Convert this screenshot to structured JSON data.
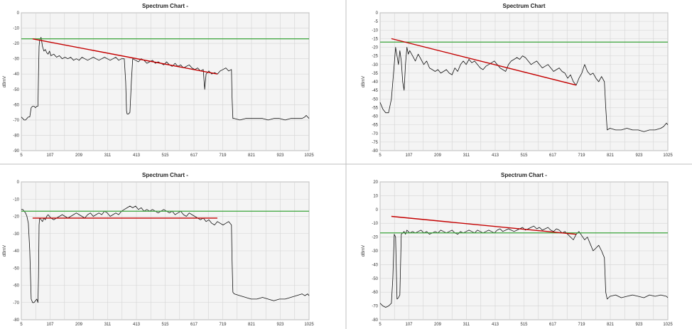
{
  "chart_data": [
    {
      "type": "line",
      "title": "Spectrum Chart -",
      "xlabel": "",
      "ylabel": "dBmV",
      "xlim": [
        5,
        1025
      ],
      "ylim": [
        -90,
        0
      ],
      "x_ticks": [
        "5",
        "107",
        "209",
        "311",
        "413",
        "515",
        "617",
        "719",
        "821",
        "923",
        "1025"
      ],
      "y_ticks": [
        "0",
        "-10",
        "-20",
        "-30",
        "-40",
        "-50",
        "-60",
        "-70",
        "-80",
        "-90"
      ],
      "reference_level": -17,
      "trend_line": [
        [
          45,
          -17
        ],
        [
          700,
          -40
        ]
      ],
      "series": [
        {
          "x": [
            5,
            10,
            15,
            20,
            25,
            30,
            35,
            40,
            45,
            50,
            55,
            60,
            64,
            66,
            68,
            70,
            75,
            80,
            85,
            90,
            95,
            100,
            105,
            110,
            120,
            130,
            140,
            150,
            160,
            170,
            180,
            190,
            200,
            210,
            220,
            230,
            240,
            250,
            260,
            270,
            280,
            290,
            300,
            310,
            320,
            330,
            340,
            350,
            360,
            370,
            375,
            378,
            380,
            385,
            390,
            395,
            400,
            410,
            420,
            430,
            440,
            450,
            460,
            470,
            480,
            490,
            500,
            510,
            520,
            530,
            540,
            550,
            560,
            570,
            580,
            590,
            600,
            610,
            620,
            630,
            640,
            650,
            655,
            660,
            670,
            680,
            690,
            700,
            710,
            720,
            730,
            740,
            750,
            752,
            755,
            760,
            780,
            800,
            820,
            840,
            860,
            880,
            900,
            920,
            940,
            960,
            980,
            1000,
            1010,
            1015,
            1020,
            1025
          ],
          "y": [
            -68,
            -69,
            -70,
            -70,
            -69,
            -68,
            -68,
            -62,
            -61,
            -61,
            -62,
            -61,
            -61,
            -40,
            -22,
            -18,
            -16,
            -22,
            -25,
            -24,
            -26,
            -27,
            -25,
            -28,
            -27,
            -29,
            -28,
            -30,
            -29,
            -30,
            -29,
            -31,
            -30,
            -31,
            -29,
            -30,
            -31,
            -30,
            -29,
            -30,
            -31,
            -30,
            -29,
            -30,
            -31,
            -30,
            -29,
            -31,
            -30,
            -30,
            -45,
            -64,
            -66,
            -66,
            -65,
            -45,
            -30,
            -31,
            -32,
            -30,
            -31,
            -33,
            -32,
            -31,
            -33,
            -32,
            -33,
            -34,
            -32,
            -34,
            -35,
            -33,
            -35,
            -34,
            -36,
            -35,
            -34,
            -36,
            -37,
            -36,
            -38,
            -37,
            -50,
            -40,
            -38,
            -40,
            -39,
            -40,
            -38,
            -37,
            -36,
            -38,
            -37,
            -55,
            -69,
            -69,
            -70,
            -69,
            -69,
            -69,
            -69,
            -70,
            -69,
            -69,
            -70,
            -69,
            -69,
            -69,
            -68,
            -67,
            -68,
            -69
          ]
        }
      ]
    },
    {
      "type": "line",
      "title": "Spectrum Chart",
      "xlabel": "",
      "ylabel": "dBmV",
      "xlim": [
        5,
        1025
      ],
      "ylim": [
        -80,
        0
      ],
      "x_ticks": [
        "5",
        "107",
        "209",
        "311",
        "413",
        "515",
        "617",
        "719",
        "821",
        "923",
        "1025"
      ],
      "y_ticks": [
        "0",
        "-5",
        "-10",
        "-15",
        "-20",
        "-25",
        "-30",
        "-35",
        "-40",
        "-45",
        "-50",
        "-55",
        "-60",
        "-65",
        "-70",
        "-75",
        "-80"
      ],
      "reference_level": -17,
      "trend_line": [
        [
          45,
          -15
        ],
        [
          700,
          -42
        ]
      ],
      "series": [
        {
          "x": [
            5,
            15,
            25,
            35,
            45,
            50,
            55,
            60,
            65,
            70,
            75,
            80,
            85,
            90,
            95,
            100,
            105,
            110,
            120,
            130,
            140,
            150,
            160,
            170,
            180,
            190,
            200,
            210,
            220,
            230,
            240,
            250,
            260,
            270,
            280,
            290,
            300,
            310,
            320,
            330,
            340,
            350,
            360,
            370,
            380,
            390,
            400,
            410,
            420,
            430,
            440,
            450,
            460,
            470,
            480,
            490,
            500,
            510,
            520,
            530,
            540,
            550,
            560,
            570,
            580,
            590,
            600,
            610,
            620,
            630,
            640,
            650,
            660,
            670,
            680,
            690,
            700,
            710,
            720,
            730,
            740,
            750,
            760,
            770,
            780,
            790,
            800,
            805,
            810,
            820,
            840,
            860,
            880,
            900,
            920,
            940,
            960,
            980,
            1000,
            1010,
            1020,
            1025
          ],
          "y": [
            -52,
            -56,
            -58,
            -58,
            -50,
            -40,
            -30,
            -20,
            -25,
            -30,
            -22,
            -28,
            -40,
            -45,
            -30,
            -20,
            -24,
            -22,
            -25,
            -28,
            -24,
            -27,
            -30,
            -28,
            -32,
            -33,
            -34,
            -33,
            -35,
            -34,
            -33,
            -35,
            -36,
            -32,
            -34,
            -30,
            -28,
            -30,
            -27,
            -29,
            -28,
            -30,
            -32,
            -33,
            -31,
            -30,
            -29,
            -28,
            -30,
            -32,
            -33,
            -34,
            -30,
            -28,
            -27,
            -26,
            -27,
            -25,
            -26,
            -28,
            -30,
            -29,
            -28,
            -30,
            -32,
            -31,
            -30,
            -32,
            -34,
            -33,
            -32,
            -34,
            -35,
            -38,
            -36,
            -40,
            -42,
            -38,
            -35,
            -30,
            -34,
            -36,
            -35,
            -38,
            -40,
            -37,
            -40,
            -55,
            -68,
            -67,
            -68,
            -68,
            -67,
            -68,
            -68,
            -69,
            -68,
            -68,
            -67,
            -66,
            -64,
            -65
          ]
        }
      ]
    },
    {
      "type": "line",
      "title": "Spectrum Chart -",
      "xlabel": "",
      "ylabel": "dBmV",
      "xlim": [
        5,
        1025
      ],
      "ylim": [
        -80,
        0
      ],
      "x_ticks": [
        "5",
        "107",
        "209",
        "311",
        "413",
        "515",
        "617",
        "719",
        "821",
        "923",
        "1025"
      ],
      "y_ticks": [
        "0",
        "-10",
        "-20",
        "-30",
        "-40",
        "-50",
        "-60",
        "-70",
        "-80"
      ],
      "reference_level": -17,
      "trend_line": [
        [
          45,
          -21
        ],
        [
          700,
          -21
        ]
      ],
      "series": [
        {
          "x": [
            5,
            10,
            15,
            20,
            25,
            30,
            35,
            40,
            45,
            50,
            55,
            60,
            64,
            66,
            68,
            70,
            75,
            80,
            85,
            90,
            95,
            100,
            110,
            120,
            130,
            140,
            150,
            160,
            170,
            180,
            190,
            200,
            210,
            220,
            230,
            240,
            250,
            260,
            270,
            280,
            290,
            300,
            310,
            320,
            330,
            340,
            350,
            360,
            370,
            380,
            390,
            400,
            410,
            420,
            430,
            440,
            450,
            460,
            470,
            480,
            490,
            500,
            510,
            520,
            530,
            540,
            550,
            560,
            570,
            580,
            590,
            600,
            610,
            620,
            630,
            640,
            650,
            660,
            670,
            680,
            690,
            700,
            710,
            720,
            730,
            740,
            750,
            752,
            755,
            760,
            780,
            800,
            820,
            840,
            860,
            880,
            900,
            920,
            940,
            960,
            980,
            1000,
            1010,
            1020,
            1025
          ],
          "y": [
            -16,
            -16,
            -17,
            -18,
            -20,
            -24,
            -40,
            -68,
            -70,
            -70,
            -69,
            -68,
            -70,
            -55,
            -25,
            -21,
            -22,
            -23,
            -21,
            -22,
            -20,
            -19,
            -21,
            -22,
            -21,
            -20,
            -19,
            -20,
            -21,
            -20,
            -19,
            -18,
            -19,
            -20,
            -21,
            -19,
            -18,
            -20,
            -19,
            -18,
            -19,
            -17,
            -18,
            -20,
            -19,
            -18,
            -19,
            -17,
            -16,
            -15,
            -14,
            -15,
            -14,
            -16,
            -15,
            -17,
            -16,
            -17,
            -16,
            -17,
            -18,
            -17,
            -16,
            -17,
            -18,
            -17,
            -19,
            -18,
            -17,
            -19,
            -20,
            -18,
            -19,
            -20,
            -21,
            -22,
            -21,
            -23,
            -22,
            -24,
            -25,
            -23,
            -24,
            -25,
            -24,
            -23,
            -25,
            -45,
            -64,
            -65,
            -66,
            -67,
            -68,
            -68,
            -67,
            -68,
            -69,
            -68,
            -68,
            -67,
            -66,
            -65,
            -66,
            -65,
            -66
          ]
        }
      ]
    },
    {
      "type": "line",
      "title": "Spectrum Chart -",
      "xlabel": "",
      "ylabel": "dBmV",
      "xlim": [
        5,
        1025
      ],
      "ylim": [
        -80,
        20
      ],
      "x_ticks": [
        "5",
        "107",
        "209",
        "311",
        "413",
        "515",
        "617",
        "719",
        "821",
        "923",
        "1025"
      ],
      "y_ticks": [
        "20",
        "10",
        "0",
        "-10",
        "-20",
        "-30",
        "-40",
        "-50",
        "-60",
        "-70",
        "-80"
      ],
      "reference_level": -17,
      "trend_line": [
        [
          45,
          -5
        ],
        [
          700,
          -18
        ]
      ],
      "series": [
        {
          "x": [
            5,
            15,
            25,
            35,
            45,
            50,
            55,
            60,
            65,
            70,
            75,
            80,
            85,
            90,
            95,
            100,
            110,
            120,
            130,
            140,
            150,
            160,
            170,
            180,
            190,
            200,
            210,
            220,
            230,
            240,
            250,
            260,
            270,
            280,
            290,
            300,
            310,
            320,
            330,
            340,
            350,
            360,
            370,
            380,
            390,
            400,
            410,
            420,
            430,
            440,
            450,
            460,
            470,
            480,
            490,
            500,
            510,
            520,
            530,
            540,
            550,
            560,
            570,
            580,
            590,
            600,
            610,
            620,
            630,
            640,
            650,
            660,
            670,
            680,
            690,
            700,
            710,
            720,
            730,
            740,
            750,
            760,
            770,
            780,
            790,
            800,
            805,
            810,
            820,
            840,
            860,
            880,
            900,
            920,
            940,
            960,
            980,
            1000,
            1020,
            1025
          ],
          "y": [
            -68,
            -70,
            -71,
            -70,
            -68,
            -50,
            -18,
            -20,
            -65,
            -64,
            -62,
            -18,
            -17,
            -16,
            -18,
            -15,
            -17,
            -16,
            -17,
            -16,
            -15,
            -17,
            -16,
            -18,
            -17,
            -16,
            -17,
            -15,
            -16,
            -17,
            -16,
            -15,
            -17,
            -18,
            -16,
            -17,
            -16,
            -15,
            -16,
            -17,
            -15,
            -16,
            -17,
            -16,
            -15,
            -16,
            -17,
            -15,
            -14,
            -16,
            -15,
            -14,
            -15,
            -16,
            -15,
            -14,
            -13,
            -15,
            -14,
            -13,
            -12,
            -14,
            -13,
            -15,
            -14,
            -13,
            -15,
            -16,
            -14,
            -15,
            -17,
            -16,
            -18,
            -20,
            -22,
            -18,
            -16,
            -19,
            -22,
            -20,
            -25,
            -30,
            -28,
            -26,
            -30,
            -35,
            -60,
            -65,
            -63,
            -62,
            -64,
            -63,
            -62,
            -63,
            -64,
            -62,
            -63,
            -62,
            -63,
            -64
          ]
        }
      ]
    }
  ]
}
